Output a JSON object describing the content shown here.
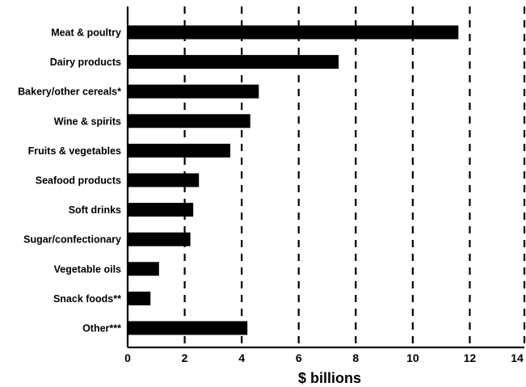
{
  "chart_data": {
    "type": "bar",
    "orientation": "horizontal",
    "categories": [
      "Meat & poultry",
      "Dairy products",
      "Bakery/other cereals*",
      "Wine & spirits",
      "Fruits & vegetables",
      "Seafood products",
      "Soft drinks",
      "Sugar/confectionary",
      "Vegetable oils",
      "Snack foods**",
      "Other***"
    ],
    "values": [
      11.6,
      7.4,
      4.6,
      4.3,
      3.6,
      2.5,
      2.3,
      2.2,
      1.1,
      0.8,
      4.2
    ],
    "xlabel": "$ billions",
    "ylabel": "",
    "xlim": [
      0,
      14
    ],
    "xticks": [
      "0",
      "2",
      "4",
      "6",
      "8",
      "10",
      "12",
      "14"
    ],
    "grid": "vertical dashed lines",
    "bar_color": "#000000"
  }
}
